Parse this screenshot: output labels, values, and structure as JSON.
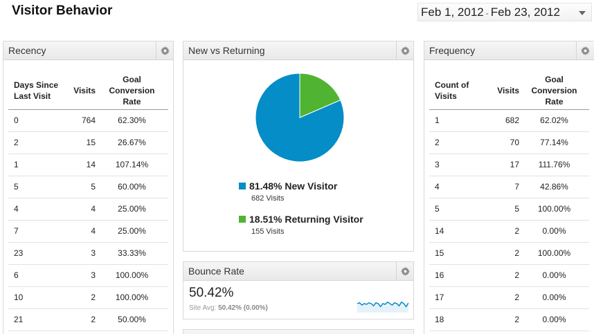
{
  "page_title": "Visitor Behavior",
  "date_range": {
    "start": "Feb 1, 2012",
    "separator": "-",
    "end": "Feb 23, 2012"
  },
  "recency": {
    "title": "Recency",
    "headers": [
      "Days Since Last Visit",
      "Visits",
      "Goal Conversion Rate"
    ],
    "rows": [
      [
        "0",
        "764",
        "62.30%"
      ],
      [
        "2",
        "15",
        "26.67%"
      ],
      [
        "1",
        "14",
        "107.14%"
      ],
      [
        "5",
        "5",
        "60.00%"
      ],
      [
        "4",
        "4",
        "25.00%"
      ],
      [
        "7",
        "4",
        "25.00%"
      ],
      [
        "23",
        "3",
        "33.33%"
      ],
      [
        "6",
        "3",
        "100.00%"
      ],
      [
        "10",
        "2",
        "100.00%"
      ],
      [
        "21",
        "2",
        "50.00%"
      ]
    ]
  },
  "new_vs_returning": {
    "title": "New vs Returning",
    "segments": [
      {
        "percent": "81.48%",
        "label": "New Visitor",
        "visits": "682 Visits",
        "value": 81.48,
        "color": "#058dc7"
      },
      {
        "percent": "18.51%",
        "label": "Returning Visitor",
        "visits": "155 Visits",
        "value": 18.51,
        "color": "#50b432"
      }
    ]
  },
  "bounce_rate": {
    "title": "Bounce Rate",
    "value": "50.42%",
    "site_avg_label": "Site Avg:",
    "site_avg_value": "50.42%",
    "site_avg_delta": "(0.00%)",
    "sparkline": [
      0.5,
      0.55,
      0.4,
      0.5,
      0.45,
      0.55,
      0.5,
      0.35,
      0.55,
      0.5,
      0.3,
      0.5,
      0.45,
      0.6,
      0.5,
      0.4,
      0.55,
      0.5,
      0.35,
      0.6,
      0.5,
      0.3,
      0.55
    ]
  },
  "frequency": {
    "title": "Frequency",
    "headers": [
      "Count of Visits",
      "Visits",
      "Goal Conversion Rate"
    ],
    "rows": [
      [
        "1",
        "682",
        "62.02%"
      ],
      [
        "2",
        "70",
        "77.14%"
      ],
      [
        "3",
        "17",
        "111.76%"
      ],
      [
        "4",
        "7",
        "42.86%"
      ],
      [
        "5",
        "5",
        "100.00%"
      ],
      [
        "14",
        "2",
        "0.00%"
      ],
      [
        "15",
        "2",
        "100.00%"
      ],
      [
        "16",
        "2",
        "0.00%"
      ],
      [
        "17",
        "2",
        "0.00%"
      ],
      [
        "18",
        "2",
        "0.00%"
      ]
    ]
  },
  "colors": {
    "new_visitor": "#058dc7",
    "returning_visitor": "#50b432",
    "sparkline_line": "#058dc7",
    "sparkline_fill": "#e6f2fa"
  },
  "icons": {
    "gear": "gear-icon",
    "caret": "chevron-down-icon"
  }
}
